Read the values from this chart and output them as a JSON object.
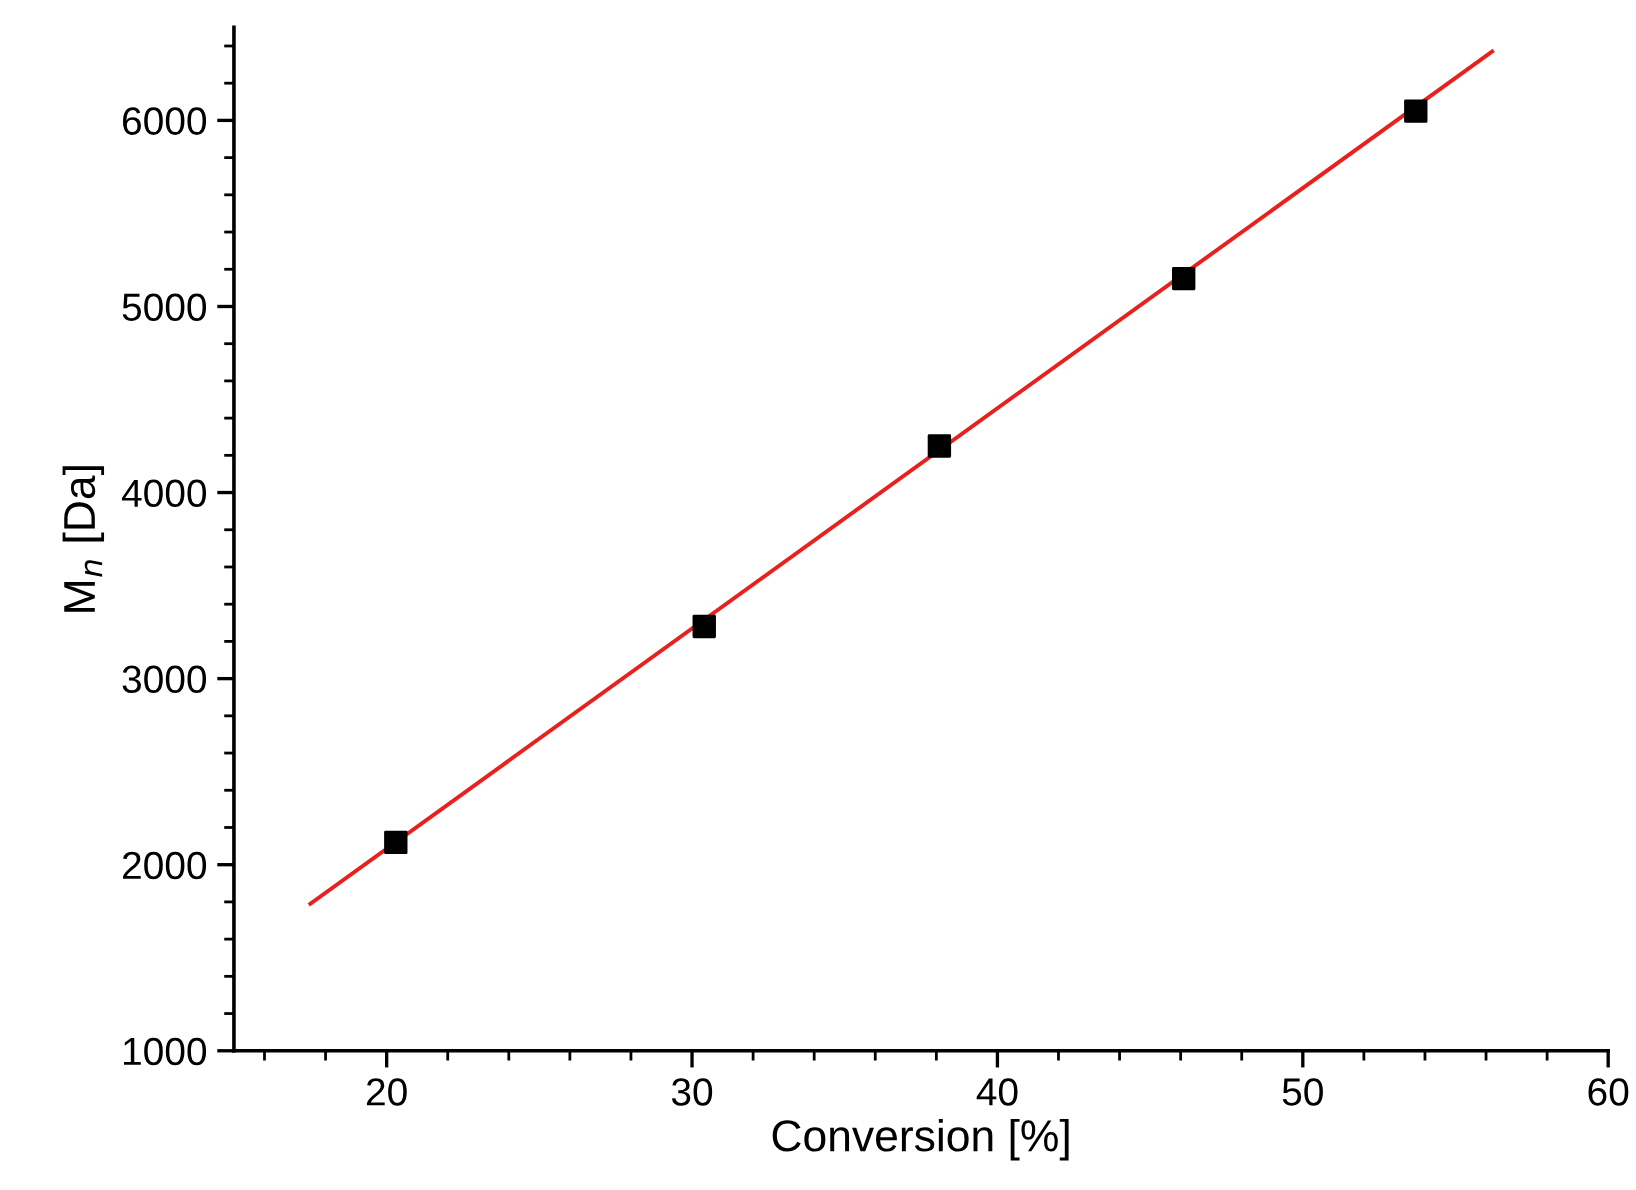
{
  "chart_data": {
    "type": "scatter",
    "xlabel": "Conversion [%]",
    "ylabel": "M$_{n}$ [Da]",
    "xlim": [
      15,
      60
    ],
    "xticks": [
      20,
      30,
      40,
      50,
      60
    ],
    "ylim": [
      1000,
      6500
    ],
    "yticks": [
      1000,
      2000,
      3000,
      4000,
      5000,
      6000
    ],
    "grid": false,
    "legend": false,
    "marker": "square",
    "series": [
      {
        "color": "#000000",
        "x": [
          20.3,
          30.4,
          38.1,
          46.1,
          53.7
        ],
        "values": [
          2120,
          3280,
          4250,
          5150,
          6050
        ]
      },
      {
        "type": "line",
        "color": "#e8201e",
        "x": [
          17.5,
          56.2
        ],
        "values": [
          1790,
          6370
        ],
        "marker": "none",
        "line_style": "solid"
      }
    ]
  }
}
